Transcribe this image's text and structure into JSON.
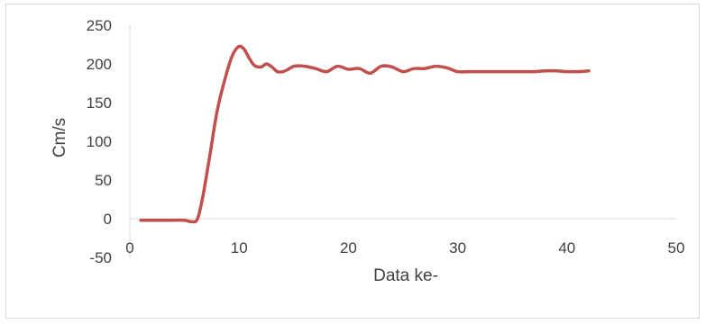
{
  "chart_data": {
    "type": "line",
    "title": "",
    "xlabel": "Data ke-",
    "ylabel": "Cm/s",
    "xlim": [
      0,
      50
    ],
    "ylim": [
      -50,
      250
    ],
    "x_ticks": [
      0,
      10,
      20,
      30,
      40,
      50
    ],
    "y_ticks": [
      -50,
      0,
      50,
      100,
      150,
      200,
      250
    ],
    "grid": false,
    "legend": "none",
    "series": [
      {
        "color": "#c0504d",
        "x": [
          1,
          2,
          3,
          4,
          5,
          5.7,
          6.2,
          6.7,
          7.3,
          8,
          8.7,
          9.3,
          9.9,
          10.4,
          10.9,
          11.4,
          12,
          12.5,
          13,
          13.5,
          14,
          14.5,
          15,
          16,
          17,
          18,
          19,
          20,
          21,
          22,
          23,
          24,
          25,
          26,
          27,
          28,
          29,
          30,
          31,
          32,
          33,
          34,
          35,
          36,
          37,
          38,
          39,
          40,
          41,
          42
        ],
        "y": [
          -2,
          -2,
          -2,
          -2,
          -2,
          -4,
          0,
          30,
          80,
          140,
          180,
          208,
          222,
          220,
          208,
          198,
          196,
          200,
          196,
          190,
          190,
          193,
          197,
          197,
          194,
          190,
          197,
          193,
          194,
          188,
          197,
          196,
          190,
          194,
          194,
          197,
          195,
          190,
          190,
          190,
          190,
          190,
          190,
          190,
          190,
          191,
          191,
          190,
          190,
          191
        ]
      }
    ]
  }
}
